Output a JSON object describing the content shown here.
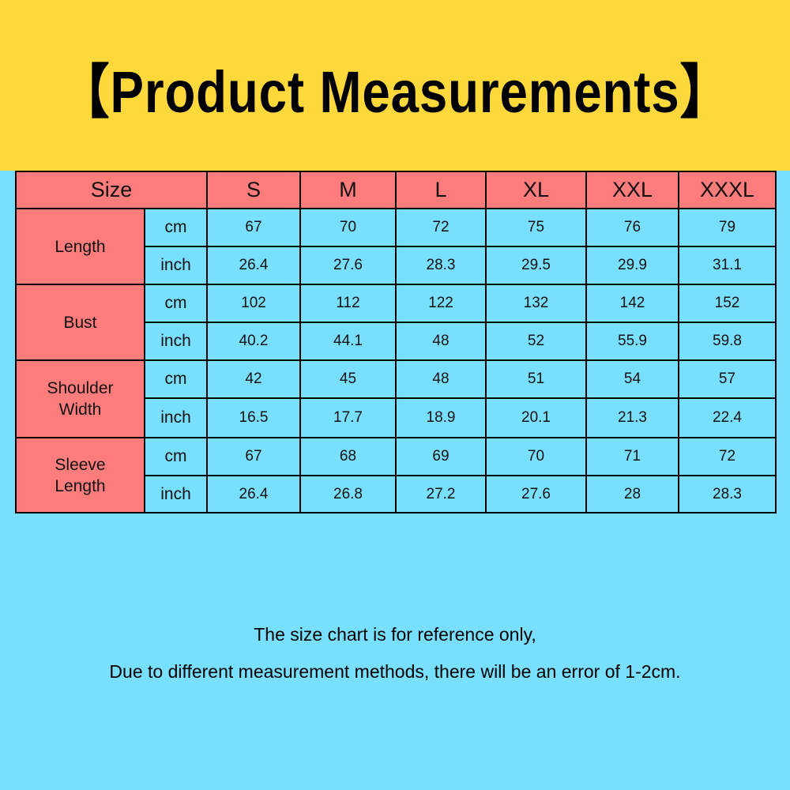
{
  "title": "【Product Measurements】",
  "colors": {
    "banner": "#FFD93B",
    "background": "#79DFFF",
    "header": "#FF7C7C"
  },
  "table": {
    "size_label": "Size",
    "sizes": [
      "S",
      "M",
      "L",
      "XL",
      "XXL",
      "XXXL"
    ],
    "rows": [
      {
        "label": "Length",
        "units": [
          {
            "unit": "cm",
            "values": [
              "67",
              "70",
              "72",
              "75",
              "76",
              "79"
            ]
          },
          {
            "unit": "inch",
            "values": [
              "26.4",
              "27.6",
              "28.3",
              "29.5",
              "29.9",
              "31.1"
            ]
          }
        ]
      },
      {
        "label": "Bust",
        "units": [
          {
            "unit": "cm",
            "values": [
              "102",
              "112",
              "122",
              "132",
              "142",
              "152"
            ]
          },
          {
            "unit": "inch",
            "values": [
              "40.2",
              "44.1",
              "48",
              "52",
              "55.9",
              "59.8"
            ]
          }
        ]
      },
      {
        "label": "Shoulder Width",
        "units": [
          {
            "unit": "cm",
            "values": [
              "42",
              "45",
              "48",
              "51",
              "54",
              "57"
            ]
          },
          {
            "unit": "inch",
            "values": [
              "16.5",
              "17.7",
              "18.9",
              "20.1",
              "21.3",
              "22.4"
            ]
          }
        ]
      },
      {
        "label": "Sleeve Length",
        "units": [
          {
            "unit": "cm",
            "values": [
              "67",
              "68",
              "69",
              "70",
              "71",
              "72"
            ]
          },
          {
            "unit": "inch",
            "values": [
              "26.4",
              "26.8",
              "27.2",
              "27.6",
              "28",
              "28.3"
            ]
          }
        ]
      }
    ]
  },
  "footer": {
    "line1": "The size chart is for reference only,",
    "line2": "Due to different measurement methods, there will be an error of 1-2cm."
  }
}
